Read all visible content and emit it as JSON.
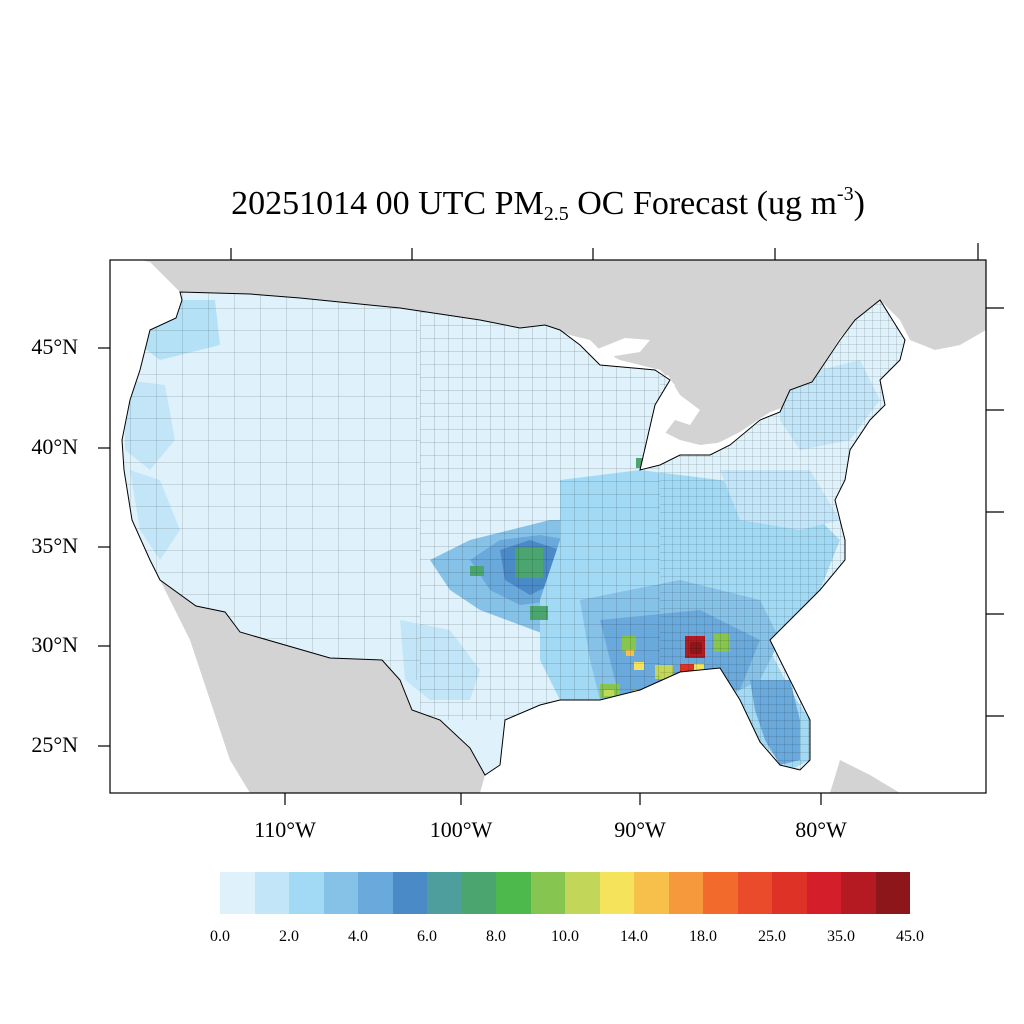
{
  "title": {
    "prefix": "20251014 00 UTC PM",
    "subscript": "2.5",
    "middle": " OC Forecast (ug m",
    "superscript": "-3",
    "suffix": ")"
  },
  "axes": {
    "lat_labels": [
      "45°N",
      "40°N",
      "35°N",
      "30°N",
      "25°N"
    ],
    "lon_labels": [
      "110°W",
      "100°W",
      "90°W",
      "80°W"
    ]
  },
  "legend": {
    "colors": [
      "#dff2fb",
      "#c2e6f8",
      "#a2daf5",
      "#86c2e8",
      "#6aa9dc",
      "#4a8ac6",
      "#4e9e9e",
      "#4aa66e",
      "#4db84b",
      "#86c550",
      "#c2d75a",
      "#f5e45b",
      "#f7c04a",
      "#f6993c",
      "#f36b2c",
      "#ea4b2b",
      "#df3226",
      "#d41f2a",
      "#b51a22",
      "#8c1619"
    ],
    "labels": [
      "0.0",
      "2.0",
      "4.0",
      "6.0",
      "8.0",
      "10.0",
      "14.0",
      "18.0",
      "25.0",
      "35.0",
      "45.0"
    ]
  },
  "colors": {
    "land_outside_conus": "#d3d3d3",
    "water": "#ffffff",
    "county_border": "#000000"
  }
}
